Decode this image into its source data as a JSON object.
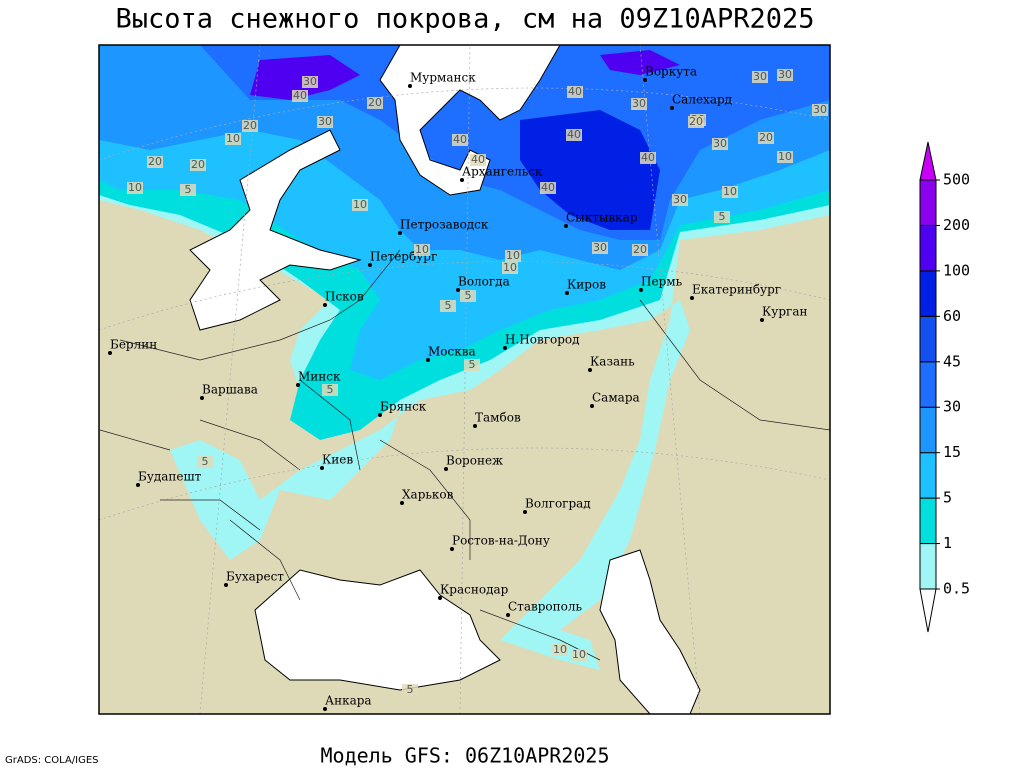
{
  "title": "Высота снежного покрова, см на 09Z10APR2025",
  "footer": "Модель GFS: 06Z10APR2025",
  "credit": "GrADS: COLA/IGES",
  "colorbar": {
    "levels": [
      0.5,
      1,
      5,
      15,
      30,
      45,
      60,
      100,
      200,
      500
    ],
    "colors": [
      "#ffffff",
      "#a0f5f5",
      "#00dede",
      "#1ec0ff",
      "#1e96ff",
      "#1e6eff",
      "#1450f0",
      "#0020e6",
      "#5000f0",
      "#8c00f0",
      "#c800f5"
    ]
  },
  "cities": [
    "Мурманск",
    "Воркута",
    "Салехард",
    "Архангельск",
    "Петрозаводск",
    "Петербург",
    "Сыктывкар",
    "Вологда",
    "Киров",
    "Пермь",
    "Екатеринбург",
    "Курган",
    "Псков",
    "Берлин",
    "Н.Новгород",
    "Москва",
    "Казань",
    "Минск",
    "Варшава",
    "Самара",
    "Брянск",
    "Тамбов",
    "Киев",
    "Воронеж",
    "Будапешт",
    "Харьков",
    "Волгоград",
    "Ростов-на-Дону",
    "Бухарест",
    "Краснодар",
    "Ставрополь",
    "Анкара"
  ],
  "contour_labels": [
    "30",
    "30",
    "30",
    "30",
    "40",
    "20",
    "20",
    "10",
    "20",
    "20",
    "10",
    "30",
    "40",
    "40",
    "40",
    "30",
    "20",
    "40",
    "20",
    "40",
    "10",
    "40",
    "30",
    "30",
    "20",
    "30",
    "10",
    "10",
    "5",
    "20",
    "10",
    "10",
    "10",
    "5",
    "5",
    "5",
    "5",
    "5",
    "5",
    "10",
    "10",
    "5"
  ]
}
